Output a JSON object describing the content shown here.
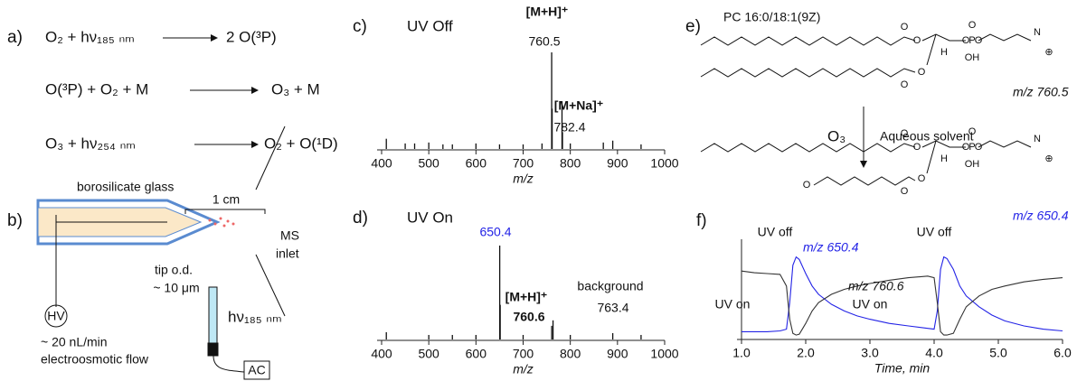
{
  "panel_labels": [
    "a)",
    "b)",
    "c)",
    "d)",
    "e)",
    "f)"
  ],
  "reactions": [
    {
      "left": "O₂ + hν₁₈₅ ₙₘ",
      "right": "2 O(³P)"
    },
    {
      "left": "O(³P) + O₂ + M",
      "right": "O₃ + M"
    },
    {
      "left": "O₃ + hν₂₅₄ ₙₘ",
      "right": "O₂ + O(¹D)"
    }
  ],
  "schematic": {
    "glass": "borosilicate glass",
    "scale": "1 cm",
    "ms": [
      "MS",
      "inlet"
    ],
    "tip": [
      "tip o.d.",
      "~ 10 μm"
    ],
    "hv": "HV",
    "lamp": "hν₁₈₅ ₙₘ",
    "flow": [
      "~ 20 nL/min",
      "electroosmotic flow"
    ],
    "ac": "AC"
  },
  "structures": {
    "name": "PC 16:0/18:1(9Z)",
    "top_mz": "m/z 760.5",
    "reagent": "O₃",
    "solvent": "Aqueous solvent",
    "bottom_mz": "m/z 650.4",
    "atoms_top": [
      "O",
      "O",
      "O",
      "P",
      "O",
      "OH",
      "O",
      "N",
      "H",
      "O",
      "O",
      "⊕"
    ],
    "atoms_bottom": [
      "O",
      "O",
      "O",
      "P",
      "O",
      "OH",
      "O",
      "N",
      "H",
      "O",
      "O",
      "⊕",
      "O"
    ]
  },
  "chart_data": [
    {
      "type": "spectrum",
      "title": "UV Off",
      "x": [
        410,
        450,
        470,
        500,
        530,
        550,
        600,
        650,
        700,
        740,
        760.5,
        761.5,
        782.4,
        783.4,
        800,
        870,
        890,
        950
      ],
      "values": [
        8,
        3,
        3,
        4,
        2,
        2,
        3,
        2,
        2,
        3,
        100,
        40,
        48,
        15,
        3,
        4,
        6,
        2
      ],
      "color": "#111",
      "xlim": [
        400,
        1000
      ],
      "ylim": [
        0,
        100
      ],
      "xticks": [
        400,
        500,
        600,
        700,
        800,
        900,
        1000
      ],
      "xlabel": "m/z",
      "annotations": [
        "[M+H]⁺",
        "760.5",
        "[M+Na]⁺",
        "782.4"
      ]
    },
    {
      "type": "spectrum",
      "title": "UV On",
      "x": [
        410,
        500,
        550,
        600,
        650.4,
        651.4,
        700,
        760.6,
        763.4,
        800,
        890,
        950
      ],
      "values": [
        5,
        2,
        2,
        2,
        100,
        35,
        2,
        12,
        18,
        2,
        4,
        2
      ],
      "color": "#111",
      "xlim": [
        400,
        1000
      ],
      "ylim": [
        0,
        100
      ],
      "xticks": [
        400,
        500,
        600,
        700,
        800,
        900,
        1000
      ],
      "xlabel": "m/z",
      "annotations": [
        "650.4",
        "[M+H]⁺",
        "760.6",
        "background",
        "763.4"
      ]
    },
    {
      "type": "line",
      "x": [
        1.0,
        1.2,
        1.4,
        1.6,
        1.7,
        1.75,
        1.8,
        1.85,
        1.9,
        2.0,
        2.1,
        2.2,
        2.4,
        2.6,
        2.8,
        3.0,
        3.3,
        3.6,
        3.9,
        4.0,
        4.05,
        4.1,
        4.15,
        4.2,
        4.3,
        4.4,
        4.5,
        4.7,
        4.9,
        5.1,
        5.4,
        5.7,
        6.0
      ],
      "series": [
        {
          "name": "m/z 650.4",
          "color": "#2323e6",
          "values": [
            5,
            5,
            5,
            6,
            8,
            40,
            85,
            95,
            92,
            75,
            60,
            50,
            38,
            30,
            24,
            20,
            15,
            12,
            9,
            8,
            30,
            80,
            95,
            93,
            80,
            60,
            48,
            35,
            25,
            18,
            12,
            8,
            6
          ]
        },
        {
          "name": "m/z 760.6",
          "color": "#333333",
          "values": [
            78,
            76,
            75,
            74,
            60,
            20,
            3,
            1,
            2,
            15,
            30,
            40,
            50,
            56,
            60,
            63,
            67,
            70,
            72,
            70,
            40,
            5,
            1,
            1,
            3,
            20,
            35,
            48,
            56,
            60,
            65,
            68,
            70
          ]
        }
      ],
      "xlim": [
        1.0,
        6.0
      ],
      "ylim": [
        0,
        100
      ],
      "xticks": [
        {
          "value": 1,
          "label": "1.0"
        },
        {
          "value": 2,
          "label": "2.0"
        },
        {
          "value": 3,
          "label": "3.0"
        },
        {
          "value": 4,
          "label": "4.0"
        },
        {
          "value": 5,
          "label": "5.0"
        },
        {
          "value": 6,
          "label": "6.0"
        }
      ],
      "xlabel": "Time, min",
      "annotations": [
        "UV off",
        "UV off",
        "UV on",
        "UV on"
      ]
    }
  ]
}
